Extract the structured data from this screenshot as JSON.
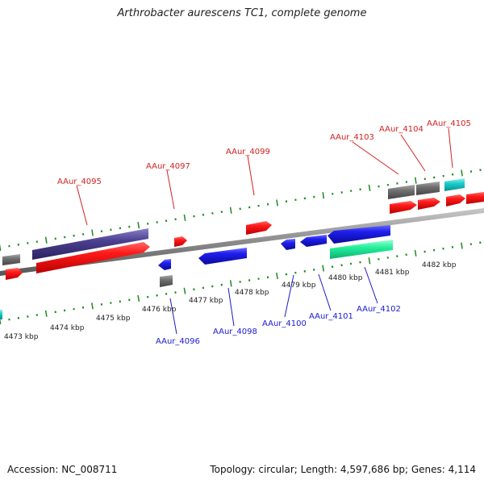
{
  "title": "Arthrobacter aurescens TC1, complete genome",
  "footer": {
    "accession": "Accession: NC_008711",
    "topology": "Topology: circular; Length: 4,597,686 bp; Genes: 4,114"
  },
  "colors": {
    "backbone": "#8c8c8c",
    "tick": "#1e8a1e",
    "label_forward": "#d42020",
    "label_reverse": "#1a1acc",
    "gene_red": "#ee1111",
    "gene_blue": "#1a1ae6",
    "gene_grey": "#6e6e6e",
    "gene_navy": "#463c8c",
    "gene_cyan": "#18c6c6",
    "gene_mint": "#22ee99"
  },
  "kbp_labels": [
    "4473 kbp",
    "4474 kbp",
    "4475 kbp",
    "4476 kbp",
    "4477 kbp",
    "4478 kbp",
    "4479 kbp",
    "4480 kbp",
    "4481 kbp",
    "4482 kbp"
  ],
  "gene_labels_forward": [
    "AAur_4095",
    "AAur_4097",
    "AAur_4099",
    "AAur_4103",
    "AAur_4104",
    "AAur_4105"
  ],
  "gene_labels_reverse": [
    "AAur_4096",
    "AAur_4098",
    "AAur_4100",
    "AAur_4101",
    "AAur_4102"
  ]
}
